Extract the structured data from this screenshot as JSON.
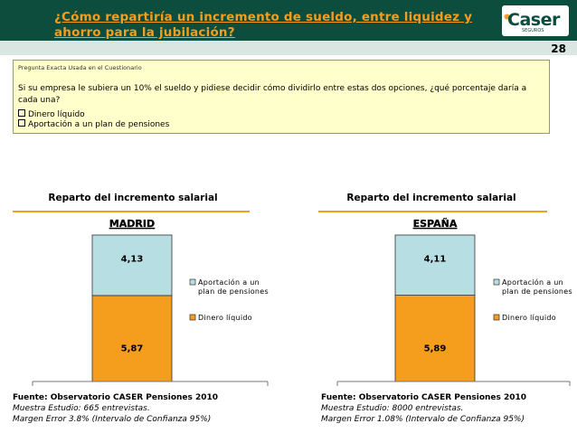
{
  "header": {
    "title": "¿Cómo repartiría un incremento de sueldo, entre liquidez y ahorro para la jubilación?",
    "logo_text": "Caser",
    "logo_sub": "SEGUROS",
    "page_number": "28"
  },
  "question": {
    "label": "Pregunta Exacta Usada en el Cuestionario",
    "text": "Si su empresa le subiera un 10% el sueldo y pidiese decidir cómo dividirlo entre estas dos opciones, ¿qué porcentaje daría a cada una?",
    "options": [
      "Dinero líquido",
      "Aportación a un plan de pensiones"
    ]
  },
  "colors": {
    "header_bg": "#0d4d3d",
    "title": "#f59d1c",
    "pension": "#b7dfe3",
    "liquid": "#f59d1c",
    "accent_line": "#f59d1c"
  },
  "chart_data": [
    {
      "type": "bar",
      "stacked": true,
      "title": "Reparto del incremento salarial",
      "subtitle": "MADRID",
      "categories": [
        "MADRID"
      ],
      "series": [
        {
          "name": "Dinero líquido",
          "values": [
            5.87
          ],
          "label": "5,87"
        },
        {
          "name": "Aportación a un plan de pensiones",
          "values": [
            4.13
          ],
          "label": "4,13"
        }
      ],
      "ylim": [
        0,
        10
      ],
      "legend": "right"
    },
    {
      "type": "bar",
      "stacked": true,
      "title": "Reparto del incremento salarial",
      "subtitle": "ESPAÑA",
      "categories": [
        "ESPAÑA"
      ],
      "series": [
        {
          "name": "Dinero líquido",
          "values": [
            5.89
          ],
          "label": "5,89"
        },
        {
          "name": "Aportación a un plan de pensiones",
          "values": [
            4.11
          ],
          "label": "4,11"
        }
      ],
      "ylim": [
        0,
        10
      ],
      "legend": "right"
    }
  ],
  "sources": [
    {
      "title": "Fuente: Observatorio CASER Pensiones 2010",
      "sample": "Muestra Estudio: 665 entrevistas.",
      "margin": "Margen Error 3.8% (Intervalo de Confianza 95%)"
    },
    {
      "title": "Fuente: Observatorio CASER Pensiones 2010",
      "sample": "Muestra Estudio: 8000 entrevistas.",
      "margin": "Margen Error 1.08% (Intervalo de Confianza 95%)"
    }
  ],
  "legend_lines": {
    "pension": [
      "Aportación a un",
      "plan de pensiones"
    ],
    "liquid": [
      "Dinero líquido"
    ]
  }
}
